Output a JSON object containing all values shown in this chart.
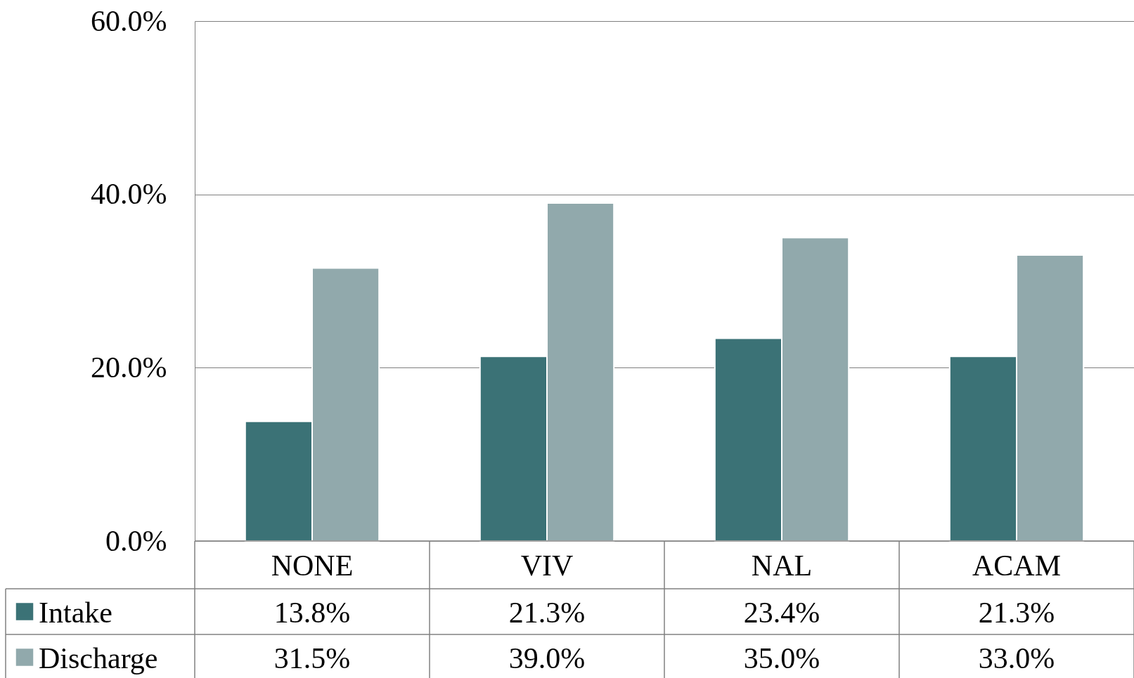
{
  "chart_data": {
    "type": "bar",
    "categories": [
      "NONE",
      "VIV",
      "NAL",
      "ACAM"
    ],
    "series": [
      {
        "name": "Intake",
        "color": "#3b7276",
        "values": [
          13.8,
          21.3,
          23.4,
          21.3
        ]
      },
      {
        "name": "Discharge",
        "color": "#91a9ac",
        "values": [
          31.5,
          39.0,
          35.0,
          33.0
        ]
      }
    ],
    "value_labels": [
      [
        "13.8%",
        "21.3%",
        "23.4%",
        "21.3%"
      ],
      [
        "31.5%",
        "39.0%",
        "35.0%",
        "33.0%"
      ]
    ],
    "ylim": [
      0,
      60
    ],
    "yticks": [
      {
        "value": 0,
        "label": "0.0%"
      },
      {
        "value": 20,
        "label": "20.0%"
      },
      {
        "value": 40,
        "label": "40.0%"
      },
      {
        "value": 60,
        "label": "60.0%"
      }
    ],
    "grid": "y",
    "legend": "bottom left"
  }
}
